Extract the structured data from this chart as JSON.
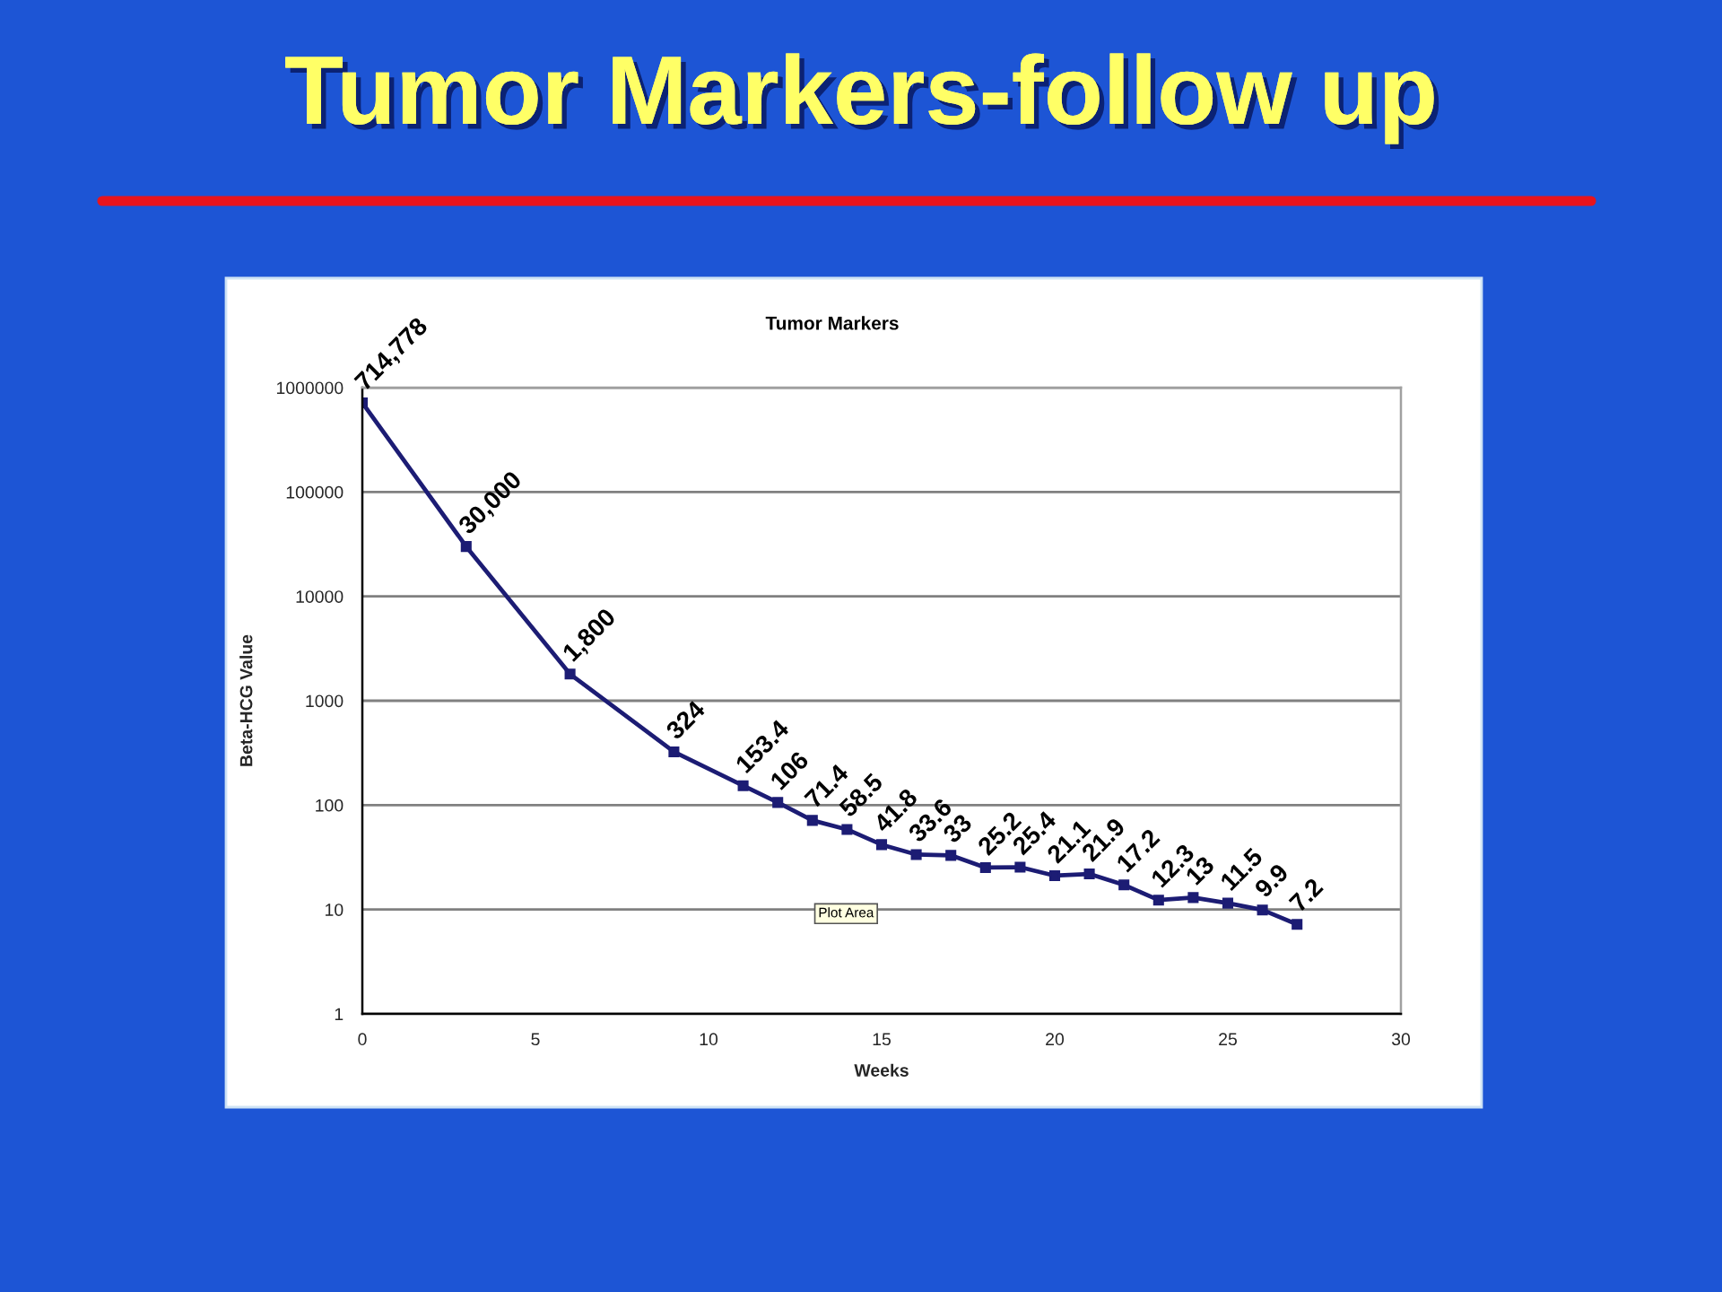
{
  "chart_data": {
    "type": "line",
    "title": "Tumor Markers-follow up",
    "subtitle": "Tumor Markers",
    "xlabel": "Weeks",
    "ylabel": "Beta-HCG Value",
    "annotations": [
      "Plot Area"
    ],
    "x": [
      0,
      3,
      6,
      9,
      11,
      12,
      13,
      14,
      15,
      16,
      17,
      18,
      19,
      20,
      21,
      22,
      23,
      24,
      25,
      26,
      27
    ],
    "series": [
      {
        "color": "#1c1c74",
        "values": [
          714778,
          30000,
          1800,
          324,
          153.4,
          106,
          71.4,
          58.5,
          41.8,
          33.6,
          33,
          25.2,
          25.4,
          21.1,
          21.9,
          17.2,
          12.3,
          13,
          11.5,
          9.9,
          7.2
        ],
        "value_labels": [
          "714,778",
          "30,000",
          "1,800",
          "324",
          "153.4",
          "106",
          "71.4",
          "58.5",
          "41.8",
          "33.6",
          "33",
          "25.2",
          "25.4",
          "21.1",
          "21.9",
          "17.2",
          "12.3",
          "13",
          "11.5",
          "9.9",
          "7.2"
        ]
      }
    ],
    "xlim": [
      0,
      30
    ],
    "xticks": [
      0,
      5,
      10,
      15,
      20,
      25,
      30
    ],
    "ylim": [
      1,
      1000000
    ],
    "yticks": [
      1,
      10,
      100,
      1000,
      10000,
      100000,
      1000000
    ],
    "log": "y",
    "grid": "y",
    "marker": "square",
    "line_style": "solid"
  }
}
